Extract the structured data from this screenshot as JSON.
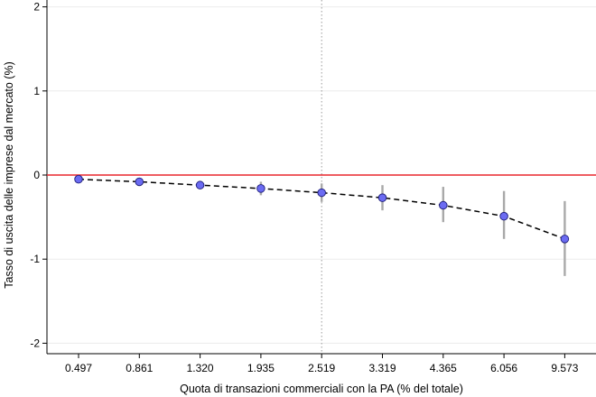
{
  "chart_data": {
    "type": "scatter",
    "xlabel": "Quota di transazioni commerciali con la PA (% del totale)",
    "ylabel": "Tasso di uscita delle imprese dal mercato (%)",
    "categories": [
      "0.497",
      "0.861",
      "1.320",
      "1.935",
      "2.519",
      "3.319",
      "4.365",
      "6.056",
      "9.573"
    ],
    "yticks": [
      "2",
      "1",
      "0",
      "-1",
      "-2"
    ],
    "ylim": [
      -2.1,
      2.0
    ],
    "grid": true,
    "reference_line_y": 0,
    "reference_line_color": "#e8262d",
    "reference_vline_category": "2.519",
    "point_color": "#6b6bf2",
    "line_style": "dashed",
    "series": [
      {
        "values": [
          -0.05,
          -0.08,
          -0.12,
          -0.16,
          -0.21,
          -0.27,
          -0.36,
          -0.49,
          -0.76
        ],
        "ci_low": [
          -0.07,
          -0.11,
          -0.17,
          -0.24,
          -0.32,
          -0.42,
          -0.56,
          -0.76,
          -1.2
        ],
        "ci_high": [
          -0.03,
          -0.05,
          -0.07,
          -0.08,
          -0.1,
          -0.12,
          -0.14,
          -0.19,
          -0.31
        ]
      }
    ]
  }
}
